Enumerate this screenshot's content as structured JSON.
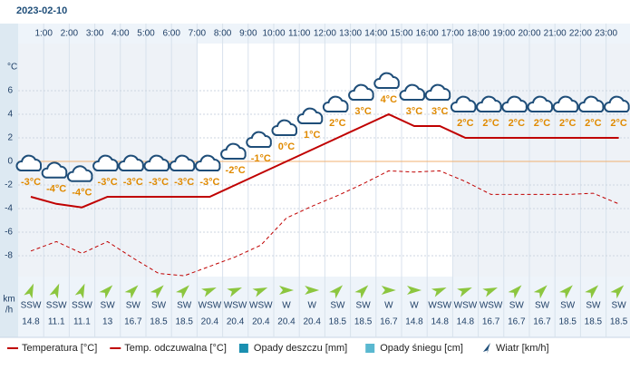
{
  "chart_data": {
    "type": "line",
    "title": "2023-02-10",
    "categories": [
      null,
      "1:00",
      "2:00",
      "3:00",
      "4:00",
      "5:00",
      "6:00",
      "7:00",
      "8:00",
      "9:00",
      "10:00",
      "11:00",
      "12:00",
      "13:00",
      "14:00",
      "15:00",
      "16:00",
      "17:00",
      "18:00",
      "19:00",
      "20:00",
      "21:00",
      "22:00",
      "23:00"
    ],
    "y_unit": "°C",
    "ylim": [
      -10,
      10
    ],
    "yticks": [
      -8,
      -6,
      -4,
      -2,
      0,
      2,
      4,
      6
    ],
    "grid": true,
    "series": [
      {
        "name": "Temperatura [°C]",
        "color": "#c00000",
        "dash": false,
        "values": [
          -3,
          -3.6,
          -3.9,
          -3,
          -3,
          -3,
          -3,
          -3,
          -2,
          -1,
          0,
          1,
          2,
          3,
          4,
          3,
          3,
          2,
          2,
          2,
          2,
          2,
          2,
          2
        ],
        "value_labels": [
          "-3°C",
          "-4°C",
          "-4°C",
          "-3°C",
          "-3°C",
          "-3°C",
          "-3°C",
          "-3°C",
          "-2°C",
          "-1°C",
          "0°C",
          "1°C",
          "2°C",
          "3°C",
          "4°C",
          "3°C",
          "3°C",
          "2°C",
          "2°C",
          "2°C",
          "2°C",
          "2°C",
          "2°C",
          "2°C"
        ]
      },
      {
        "name": "Temp. odczuwalna [°C]",
        "color": "#c00000",
        "dash": true,
        "values": [
          -7.6,
          -6.8,
          -7.8,
          -6.8,
          -8.2,
          -9.5,
          -9.7,
          -8.9,
          -8.1,
          -7.1,
          -4.8,
          -3.8,
          -2.9,
          -1.9,
          -0.8,
          -0.9,
          -0.8,
          -1.7,
          -2.8,
          -2.8,
          -2.8,
          -2.8,
          -2.7,
          -3.6
        ]
      }
    ],
    "legend_extra": [
      {
        "name": "Opady deszczu [mm]",
        "color": "#1a8fb0"
      },
      {
        "name": "Opady śniegu [cm]",
        "color": "#5ab8d0"
      },
      {
        "name": "Wiatr [km/h]",
        "color": "#1f4e79"
      }
    ],
    "wind": {
      "unit_top": "km",
      "unit_bottom": "/h",
      "directions": [
        "SSW",
        "SSW",
        "SSW",
        "SW",
        "SW",
        "SW",
        "SW",
        "WSW",
        "WSW",
        "WSW",
        "W",
        "W",
        "SW",
        "SW",
        "W",
        "W",
        "WSW",
        "WSW",
        "WSW",
        "SW",
        "SW",
        "SW",
        "SW",
        "SW"
      ],
      "speeds": [
        14.8,
        11.1,
        11.1,
        13,
        16.7,
        18.5,
        18.5,
        20.4,
        20.4,
        20.4,
        20.4,
        20.4,
        18.5,
        18.5,
        16.7,
        14.8,
        14.8,
        14.8,
        16.7,
        16.7,
        16.7,
        18.5,
        18.5,
        18.5
      ]
    }
  }
}
